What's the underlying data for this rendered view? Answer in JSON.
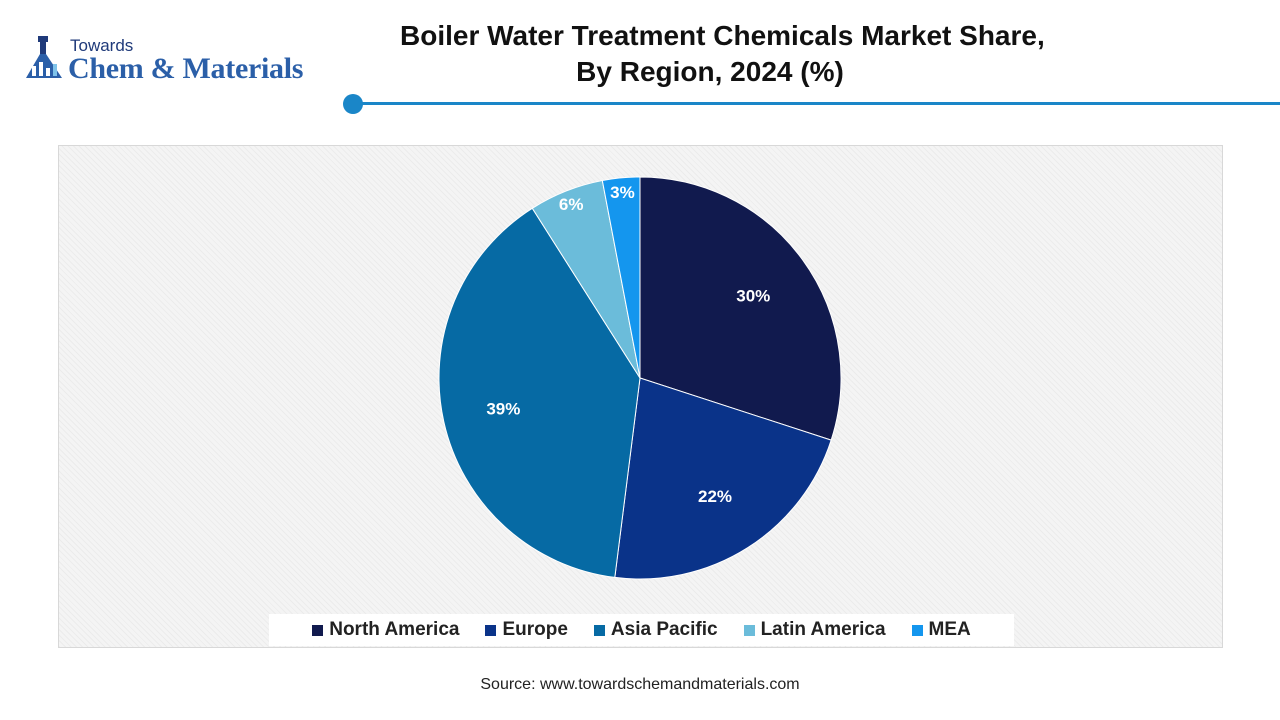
{
  "brand": {
    "towards": "Towards",
    "name": "Chem & Materials"
  },
  "header": {
    "title_line1": "Boiler Water Treatment Chemicals Market Share,",
    "title_line2": "By Region, 2024 (%)",
    "accent_color": "#1a86c8"
  },
  "chart_data": {
    "type": "pie",
    "title": "Boiler Water Treatment Chemicals Market Share, By Region, 2024 (%)",
    "categories": [
      "North America",
      "Europe",
      "Asia Pacific",
      "Latin America",
      "MEA"
    ],
    "values": [
      30,
      22,
      39,
      6,
      3
    ],
    "labels": [
      "30%",
      "22%",
      "39%",
      "6%",
      "3%"
    ],
    "colors": [
      "#111a4e",
      "#0a3389",
      "#066aa4",
      "#6bbcda",
      "#1496ee"
    ],
    "legend_position": "bottom"
  },
  "footer": {
    "source": "Source: www.towardschemandmaterials.com"
  }
}
